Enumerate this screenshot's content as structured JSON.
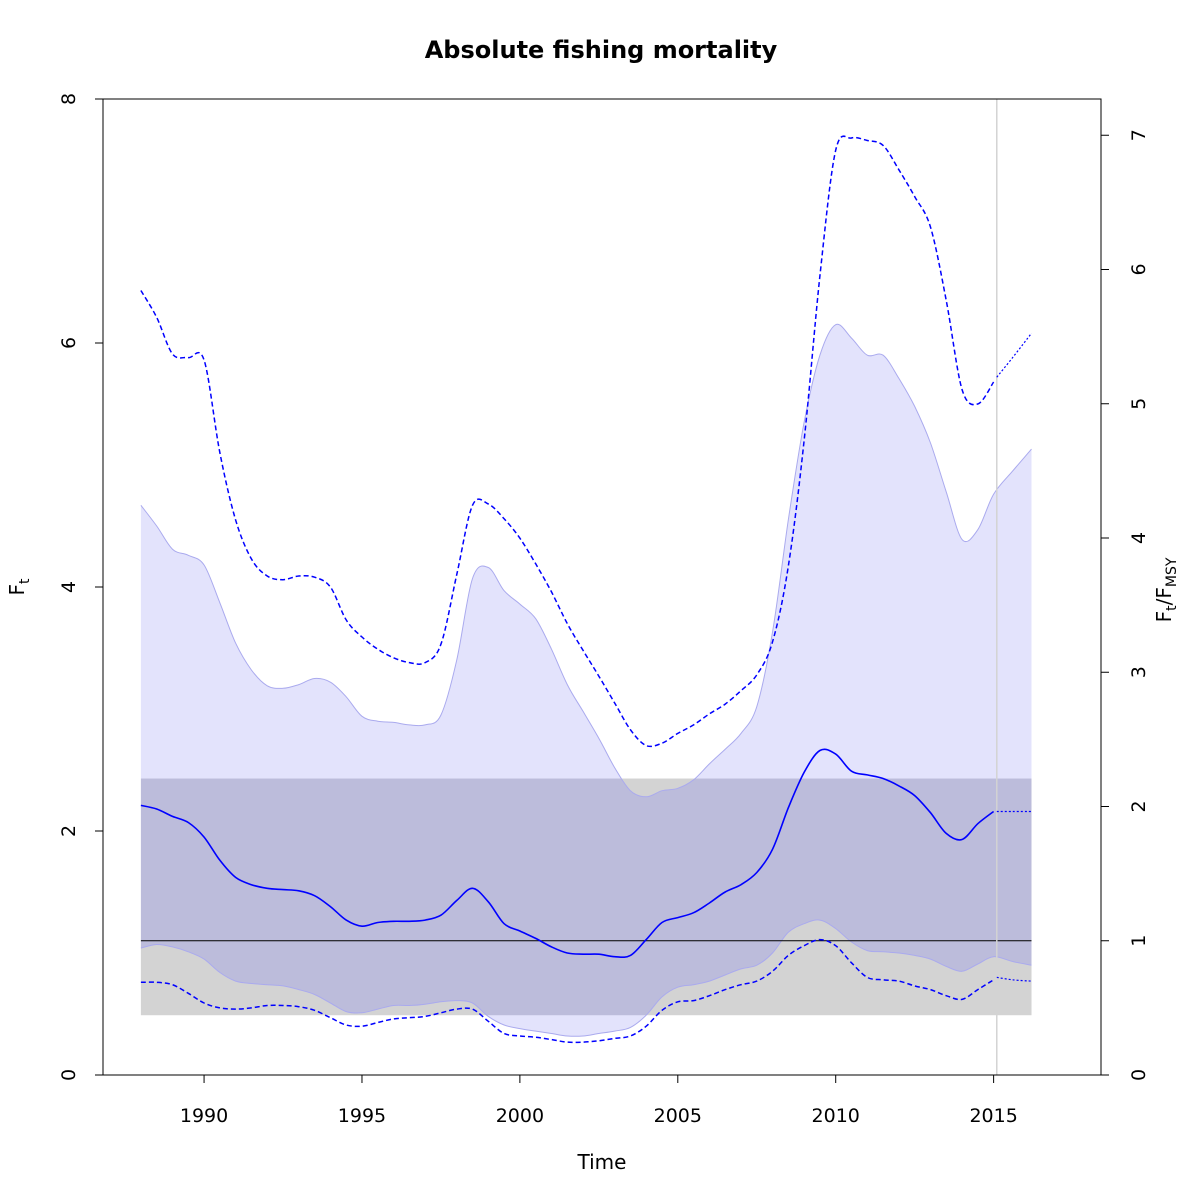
{
  "chart_data": {
    "type": "line",
    "title": "Absolute fishing mortality",
    "xlabel": "Time",
    "ylabel_main": "F",
    "ylabel_sub": "t",
    "y2label_a": "F",
    "y2label_a_sub": "t",
    "y2label_sep": "/F",
    "y2label_b_sub": "MSY",
    "xlim": [
      1986.8,
      2018.4
    ],
    "ylim": [
      0,
      8
    ],
    "y2lim": [
      0,
      7.27
    ],
    "x_ticks": [
      1990,
      1995,
      2000,
      2005,
      2010,
      2015
    ],
    "y_ticks": [
      0,
      2,
      4,
      6,
      8
    ],
    "y2_ticks": [
      0,
      1,
      2,
      3,
      4,
      5,
      6,
      7
    ],
    "fmsy": 1.1,
    "fmsy_band": {
      "x": [
        1988,
        2016.2
      ],
      "y": [
        0.49,
        2.43
      ]
    },
    "last_obs_year": 2015.1,
    "colors": {
      "ci_fill": "#e3e3fc",
      "ci_edge": "#aaaaee",
      "fmsy_fill": "#d3d3d3",
      "overlap_fill": "#bcbcdb",
      "estimate": "#0000ff",
      "fmsy_line": "#000000",
      "vline": "#d3d3d3"
    },
    "x": [
      1988.0,
      1988.5,
      1989.0,
      1989.5,
      1990.0,
      1990.5,
      1991.0,
      1991.5,
      1992.0,
      1992.5,
      1993.0,
      1993.5,
      1994.0,
      1994.5,
      1995.0,
      1995.5,
      1996.0,
      1996.5,
      1997.0,
      1997.5,
      1998.0,
      1998.5,
      1999.0,
      1999.5,
      2000.0,
      2000.5,
      2001.0,
      2001.5,
      2002.0,
      2002.5,
      2003.0,
      2003.5,
      2004.0,
      2004.5,
      2005.0,
      2005.5,
      2006.0,
      2006.5,
      2007.0,
      2007.5,
      2008.0,
      2008.5,
      2009.0,
      2009.5,
      2010.0,
      2010.5,
      2011.0,
      2011.5,
      2012.0,
      2012.5,
      2013.0,
      2013.5,
      2014.0,
      2014.5,
      2015.0
    ],
    "series": [
      {
        "name": "F estimate",
        "style": "solid",
        "values": [
          2.21,
          2.18,
          2.12,
          2.07,
          1.95,
          1.76,
          1.62,
          1.56,
          1.53,
          1.52,
          1.51,
          1.47,
          1.38,
          1.27,
          1.22,
          1.25,
          1.26,
          1.26,
          1.27,
          1.31,
          1.43,
          1.53,
          1.42,
          1.24,
          1.18,
          1.12,
          1.05,
          1.0,
          0.99,
          0.99,
          0.97,
          0.98,
          1.11,
          1.25,
          1.29,
          1.33,
          1.41,
          1.5,
          1.56,
          1.66,
          1.85,
          2.19,
          2.48,
          2.66,
          2.63,
          2.49,
          2.46,
          2.43,
          2.37,
          2.29,
          2.15,
          1.98,
          1.93,
          2.06,
          2.16
        ]
      },
      {
        "name": "CI upper",
        "style": "dashed",
        "values": [
          6.43,
          6.21,
          5.91,
          5.88,
          5.86,
          5.1,
          4.55,
          4.23,
          4.09,
          4.06,
          4.09,
          4.08,
          4.0,
          3.73,
          3.59,
          3.49,
          3.42,
          3.38,
          3.38,
          3.53,
          4.1,
          4.67,
          4.68,
          4.56,
          4.4,
          4.19,
          3.96,
          3.7,
          3.48,
          3.27,
          3.05,
          2.83,
          2.7,
          2.72,
          2.8,
          2.87,
          2.96,
          3.04,
          3.15,
          3.28,
          3.55,
          4.17,
          5.2,
          6.55,
          7.58,
          7.68,
          7.66,
          7.62,
          7.42,
          7.2,
          6.95,
          6.35,
          5.62,
          5.5,
          5.68
        ]
      },
      {
        "name": "CI lower",
        "style": "dashed",
        "values": [
          0.76,
          0.76,
          0.74,
          0.67,
          0.59,
          0.55,
          0.54,
          0.55,
          0.57,
          0.57,
          0.56,
          0.53,
          0.47,
          0.41,
          0.4,
          0.43,
          0.46,
          0.47,
          0.48,
          0.51,
          0.54,
          0.54,
          0.44,
          0.34,
          0.32,
          0.31,
          0.29,
          0.27,
          0.27,
          0.28,
          0.3,
          0.32,
          0.4,
          0.53,
          0.6,
          0.61,
          0.65,
          0.7,
          0.74,
          0.77,
          0.85,
          0.98,
          1.06,
          1.11,
          1.06,
          0.92,
          0.8,
          0.78,
          0.77,
          0.73,
          0.7,
          0.65,
          0.62,
          0.7,
          0.78
        ]
      },
      {
        "name": "CI band upper",
        "style": "fill",
        "values": [
          4.67,
          4.5,
          4.31,
          4.26,
          4.18,
          3.87,
          3.54,
          3.32,
          3.19,
          3.17,
          3.2,
          3.25,
          3.22,
          3.1,
          2.94,
          2.9,
          2.89,
          2.87,
          2.87,
          2.95,
          3.4,
          4.07,
          4.16,
          3.97,
          3.86,
          3.74,
          3.49,
          3.2,
          2.98,
          2.76,
          2.52,
          2.33,
          2.28,
          2.33,
          2.35,
          2.42,
          2.55,
          2.67,
          2.8,
          3.02,
          3.63,
          4.55,
          5.35,
          5.9,
          6.15,
          6.04,
          5.9,
          5.9,
          5.71,
          5.48,
          5.18,
          4.78,
          4.39,
          4.47,
          4.76
        ]
      },
      {
        "name": "CI band lower",
        "style": "fill",
        "values": [
          1.04,
          1.07,
          1.05,
          1.01,
          0.95,
          0.84,
          0.77,
          0.75,
          0.74,
          0.73,
          0.7,
          0.66,
          0.59,
          0.52,
          0.51,
          0.54,
          0.57,
          0.57,
          0.58,
          0.6,
          0.61,
          0.59,
          0.48,
          0.41,
          0.38,
          0.36,
          0.34,
          0.32,
          0.32,
          0.34,
          0.36,
          0.39,
          0.49,
          0.64,
          0.72,
          0.74,
          0.77,
          0.82,
          0.87,
          0.9,
          1.0,
          1.17,
          1.24,
          1.27,
          1.2,
          1.09,
          1.02,
          1.01,
          1.0,
          0.98,
          0.95,
          0.89,
          0.85,
          0.91,
          0.97
        ]
      }
    ],
    "forecast": {
      "x": [
        2015.1,
        2015.6,
        2016.2
      ],
      "estimate": [
        2.16,
        2.16,
        2.16
      ],
      "ci_upper": [
        5.72,
        5.88,
        6.08
      ],
      "ci_lower": [
        0.8,
        0.78,
        0.77
      ],
      "band_upper": [
        4.8,
        4.95,
        5.13
      ],
      "band_lower": [
        0.96,
        0.93,
        0.9
      ]
    }
  }
}
